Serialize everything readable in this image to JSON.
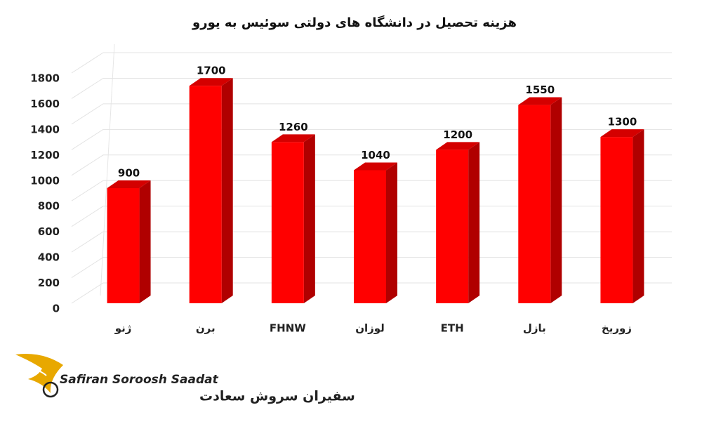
{
  "chart_data": {
    "type": "bar",
    "title": "هزینه تحصیل در دانشگاه های دولتی سوئیس به یورو",
    "categories": [
      "ژنو",
      "برن",
      "FHNW",
      "لوزان",
      "ETH",
      "بازل",
      "زوریخ"
    ],
    "values": [
      900,
      1700,
      1260,
      1040,
      1200,
      1550,
      1300
    ],
    "color": "#ff0000",
    "ylim": [
      0,
      1800
    ],
    "yticks": [
      0,
      200,
      400,
      600,
      800,
      1000,
      1200,
      1400,
      1600,
      1800
    ],
    "grid": true
  },
  "logo": {
    "name_en": "Safiran Soroosh Saadat",
    "name_fa": "سفیران سروش سعادت"
  }
}
